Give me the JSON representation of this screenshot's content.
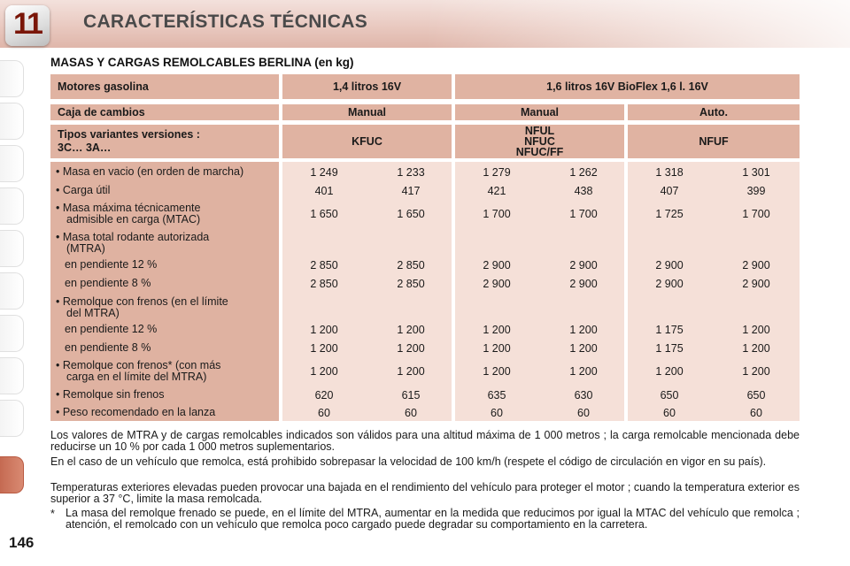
{
  "header": {
    "chapter": "11",
    "title": "CARACTERÍSTICAS TÉCNICAS"
  },
  "page_number": "146",
  "section_title": "MASAS Y CARGAS REMOLCABLES BERLINA (en kg)",
  "table": {
    "engine_label": "Motores gasolina",
    "engines": [
      "1,4 litros 16V",
      "1,6 litros 16V  BioFlex 1,6 l. 16V"
    ],
    "gearbox_label": "Caja de cambios",
    "gearboxes": [
      "Manual",
      "Manual",
      "Auto."
    ],
    "variants_label": [
      "Tipos variantes versiones :",
      "3C… 3A…"
    ],
    "variants": [
      [
        "KFUC"
      ],
      [
        "NFUL",
        "NFUC",
        "NFUC/FF"
      ],
      [
        "NFUF"
      ]
    ],
    "rows": [
      {
        "label": [
          "• Masa en vacio (en orden de marcha)"
        ],
        "values": [
          "1 249",
          "1 233",
          "1 279",
          "1 262",
          "1 318",
          "1 301"
        ]
      },
      {
        "label": [
          "• Carga útil"
        ],
        "values": [
          "401",
          "417",
          "421",
          "438",
          "407",
          "399"
        ]
      },
      {
        "label": [
          "• Masa máxima técnicamente",
          "admisible en carga (MTAC)"
        ],
        "values": [
          "1 650",
          "1 650",
          "1 700",
          "1 700",
          "1 725",
          "1 700"
        ]
      },
      {
        "label": [
          "• Masa total rodante autorizada",
          "(MTRA)"
        ],
        "values": []
      },
      {
        "label": [
          "en pendiente 12 %"
        ],
        "values": [
          "2 850",
          "2 850",
          "2 900",
          "2 900",
          "2 900",
          "2 900"
        ]
      },
      {
        "label": [
          "en pendiente 8 %"
        ],
        "values": [
          "2 850",
          "2 850",
          "2 900",
          "2 900",
          "2 900",
          "2 900"
        ]
      },
      {
        "label": [
          "• Remolque con frenos (en el límite",
          "del MTRA)"
        ],
        "values": []
      },
      {
        "label": [
          "en pendiente 12 %"
        ],
        "values": [
          "1 200",
          "1 200",
          "1 200",
          "1 200",
          "1 175",
          "1 200"
        ]
      },
      {
        "label": [
          "en pendiente 8 %"
        ],
        "values": [
          "1 200",
          "1 200",
          "1 200",
          "1 200",
          "1 175",
          "1 200"
        ]
      },
      {
        "label": [
          "• Remolque con frenos* (con más",
          "carga en el límite del MTRA)"
        ],
        "values": [
          "1 200",
          "1 200",
          "1 200",
          "1 200",
          "1 200",
          "1 200"
        ]
      },
      {
        "label": [
          "• Remolque sin frenos"
        ],
        "values": [
          "620",
          "615",
          "635",
          "630",
          "650",
          "650"
        ]
      },
      {
        "label": [
          "• Peso recomendado en la lanza"
        ],
        "values": [
          "60",
          "60",
          "60",
          "60",
          "60",
          "60"
        ]
      }
    ]
  },
  "notes": [
    "Los valores de MTRA y de cargas remolcables indicados son válidos para una altitud máxima de 1 000 metros ; la carga remolcable mencionada debe reducirse un 10 % por cada 1 000 metros suplementarios.",
    "En el caso de un vehículo que remolca, está prohibido sobrepasar la velocidad de 100 km/h (respete el código de circulación en vigor en su país).",
    "Temperaturas exteriores elevadas pueden provocar una bajada en el rendimiento del vehículo para proteger el motor ; cuando la temperatura exterior es superior a 37 °C, limite la masa remolcada."
  ],
  "footnote": {
    "marker": "*",
    "text": "La masa del remolque frenado se puede, en el límite del MTRA, aumentar en la medida que reducimos por igual la MTAC del vehículo que remolca ; atención, el remolcado con un vehículo que remolca poco cargado puede degradar su comportamiento en la carretera."
  },
  "colors": {
    "header_cell": "#e0b3a2",
    "data_cell": "#f5e0d8",
    "label_col": "#dfb2a1",
    "chapter_number": "#7a1608",
    "active_tab": "#c56a52"
  }
}
